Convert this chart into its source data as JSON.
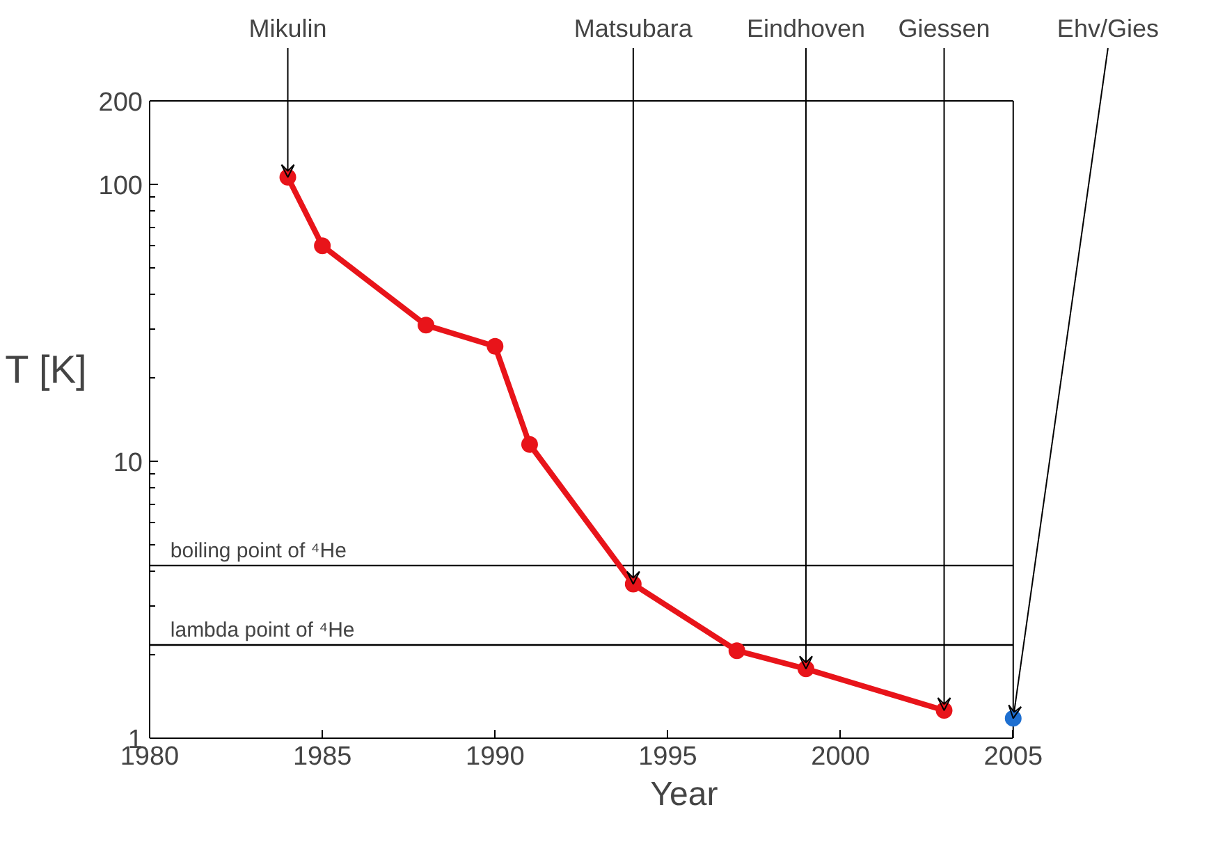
{
  "chart_data": {
    "type": "line",
    "xlabel": "Year",
    "ylabel": "T [K]",
    "xlim": [
      1980,
      2005
    ],
    "xticks": [
      1980,
      1985,
      1990,
      1995,
      2000,
      2005
    ],
    "ylim": [
      1,
      200
    ],
    "yticks": [
      1,
      10,
      100,
      200
    ],
    "log": true,
    "grid": false,
    "marker": "circle",
    "line_style": "solid",
    "series": [
      {
        "color": "#e8141a",
        "x": [
          1984,
          1985,
          1988,
          1990,
          1991,
          1994,
          1997,
          1999,
          2003
        ],
        "values": [
          106,
          60,
          31,
          26,
          11.5,
          3.6,
          2.07,
          1.78,
          1.26
        ]
      },
      {
        "type": "scatter",
        "color": "#1e6fd0",
        "x": [
          2005
        ],
        "values": [
          1.18
        ]
      }
    ],
    "ref_lines": [
      {
        "axis": "y",
        "value": 4.2,
        "label": "boiling point of ⁴He",
        "color": "#000000"
      },
      {
        "axis": "y",
        "value": 2.17,
        "label": "lambda point of ⁴He",
        "color": "#000000"
      }
    ],
    "annotations": [
      {
        "text": "Mikulin",
        "x": 1984,
        "y": 106
      },
      {
        "text": "Matsubara",
        "x": 1994,
        "y": 3.6
      },
      {
        "text": "Eindhoven",
        "x": 1999,
        "y": 1.78
      },
      {
        "text": "Giessen",
        "x": 2003,
        "y": 1.26
      },
      {
        "text": "Ehv/Gies",
        "x": 2005,
        "y": 1.18
      }
    ]
  }
}
